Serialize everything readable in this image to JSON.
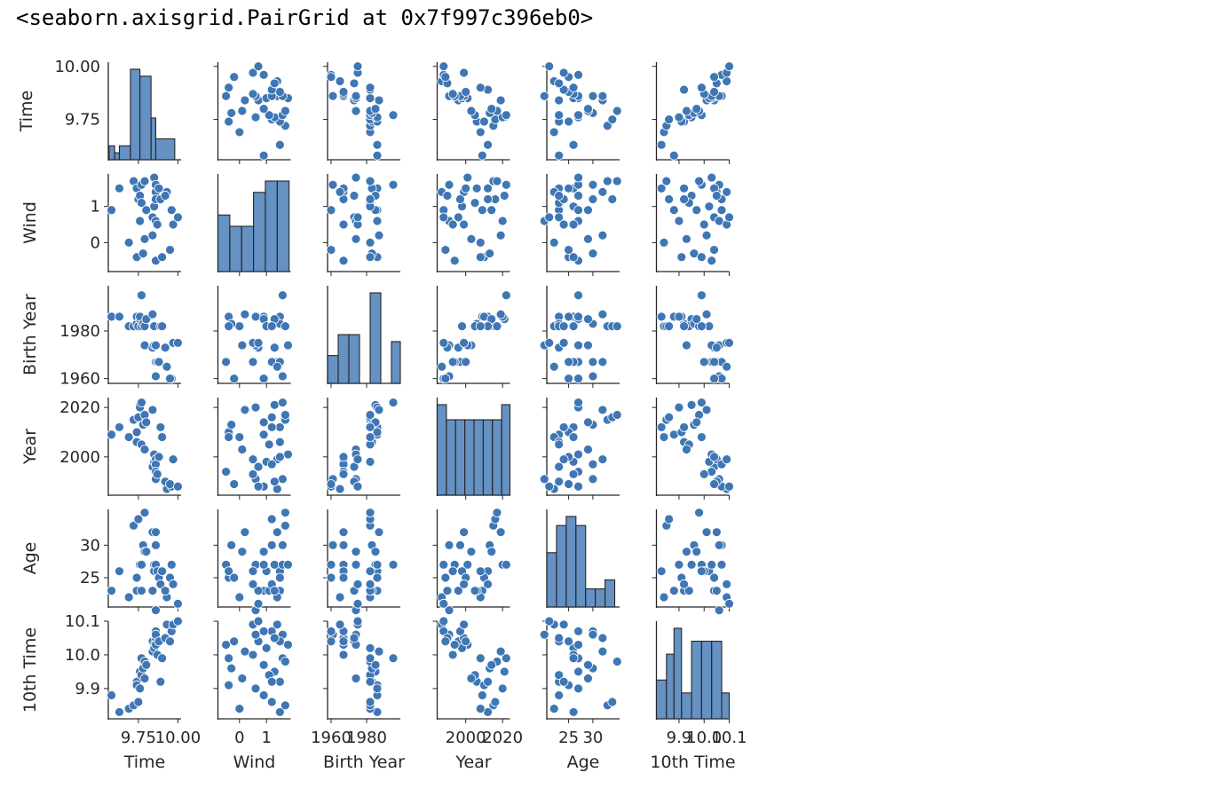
{
  "output_text": "<seaborn.axisgrid.PairGrid at 0x7f997c396eb0>",
  "colors": {
    "marker": "#3f76b4",
    "bar": "#3f76b4",
    "axis": "#262626"
  },
  "chart_data": {
    "type": "scatter",
    "title": "",
    "variables": [
      "Time",
      "Wind",
      "Birth Year",
      "Year",
      "Age",
      "10th Time"
    ],
    "diagonal": "histogram",
    "ticks": {
      "Time": {
        "values": [
          9.75,
          10.0
        ],
        "labels": [
          "9.75",
          "10.00"
        ]
      },
      "Wind": {
        "values": [
          0,
          1
        ],
        "labels": [
          "0",
          "1"
        ]
      },
      "Birth Year": {
        "values": [
          1960,
          1980
        ],
        "labels": [
          "1960",
          "1980"
        ]
      },
      "Year": {
        "values": [
          2000,
          2020
        ],
        "labels": [
          "2000",
          "2020"
        ]
      },
      "Age": {
        "values": [
          25,
          30
        ],
        "labels": [
          "25",
          "30"
        ]
      },
      "10th Time": {
        "values": [
          9.9,
          10.0,
          10.1
        ],
        "labels": [
          "9.9",
          "10.0",
          "10.1"
        ]
      }
    },
    "x_tick_labels_bottom": {
      "Time": [
        "9.75",
        "10.00"
      ],
      "Wind": [
        "0",
        "1"
      ],
      "Birth Year": [
        "1960",
        "1980"
      ],
      "Year": [
        "2000",
        "2020"
      ],
      "Age": [
        "25",
        "30"
      ],
      "10th Time": [
        "9.9",
        "10.0",
        "10.1"
      ]
    },
    "limits": {
      "Time": [
        9.56,
        10.02
      ],
      "Wind": [
        -0.8,
        1.9
      ],
      "Birth Year": [
        1958,
        1999
      ],
      "Year": [
        1984.5,
        2024
      ],
      "Age": [
        20.5,
        35.5
      ],
      "10th Time": [
        9.81,
        10.1
      ]
    },
    "records": [
      [
        9.58,
        0.9,
        1986,
        2009,
        23,
        9.88
      ],
      [
        9.63,
        1.5,
        1986,
        2012,
        26,
        9.83
      ],
      [
        9.69,
        0.0,
        1982,
        2008,
        22,
        9.84
      ],
      [
        9.72,
        1.7,
        1982,
        2015,
        33,
        9.85
      ],
      [
        9.74,
        1.5,
        1983,
        2006,
        23,
        9.92
      ],
      [
        9.74,
        -0.4,
        1986,
        2010,
        25,
        9.91
      ],
      [
        9.75,
        1.2,
        1982,
        2016,
        34,
        9.86
      ],
      [
        9.76,
        1.3,
        1985,
        2021,
        27,
        9.95
      ],
      [
        9.76,
        0.6,
        1986,
        2020,
        27,
        9.9
      ],
      [
        9.77,
        1.6,
        1995,
        2022,
        27,
        9.99
      ],
      [
        9.77,
        1.1,
        1982,
        2005,
        23,
        9.94
      ],
      [
        9.78,
        -0.3,
        1983,
        2013,
        30,
        9.96
      ],
      [
        9.79,
        0.1,
        1974,
        2003,
        29,
        9.93
      ],
      [
        9.79,
        1.7,
        1982,
        2017,
        35,
        9.98
      ],
      [
        9.8,
        0.9,
        1985,
        2014,
        29,
        9.97
      ],
      [
        9.84,
        0.7,
        1973,
        1996,
        23,
        10.04
      ],
      [
        9.84,
        0.2,
        1987,
        2019,
        32,
        10.01
      ],
      [
        9.85,
        1.8,
        1974,
        2001,
        27,
        10.03
      ],
      [
        9.85,
        1.0,
        1982,
        1998,
        26,
        10.02
      ],
      [
        9.86,
        1.4,
        1967,
        1999,
        32,
        10.05
      ],
      [
        9.86,
        0.6,
        1974,
        1991,
        20,
        10.06
      ],
      [
        9.86,
        1.2,
        1967,
        1997,
        30,
        10.07
      ],
      [
        9.86,
        1.6,
        1961,
        1991,
        30,
        10.06
      ],
      [
        9.86,
        -0.5,
        1967,
        1994,
        27,
        10.03
      ],
      [
        9.87,
        0.5,
        1967,
        1993,
        26,
        10.0
      ],
      [
        9.88,
        1.5,
        1967,
        2000,
        25,
        10.04
      ],
      [
        9.89,
        1.2,
        1982,
        2012,
        24,
        9.92
      ],
      [
        9.9,
        -0.4,
        1982,
        2008,
        26,
        9.99
      ],
      [
        9.93,
        1.4,
        1965,
        1987,
        22,
        10.09
      ],
      [
        9.96,
        0.9,
        1960,
        1988,
        27,
        10.07
      ],
      [
        9.92,
        1.3,
        1973,
        1990,
        23,
        10.05
      ],
      [
        9.95,
        -0.2,
        1960,
        1989,
        25,
        10.04
      ],
      [
        9.97,
        0.5,
        1975,
        1999,
        24,
        10.09
      ],
      [
        10.0,
        0.7,
        1975,
        1988,
        21,
        10.1
      ]
    ],
    "histograms": {
      "Time": {
        "edges": [
          9.565,
          9.6,
          9.63,
          9.7,
          9.76,
          9.83,
          9.86,
          9.98
        ],
        "counts": [
          2,
          1,
          2,
          13,
          12,
          6,
          3
        ]
      },
      "Wind": {
        "edges": [
          -0.8,
          -0.36,
          0.08,
          0.52,
          0.96,
          1.4,
          1.84
        ],
        "counts": [
          5,
          4,
          4,
          7,
          8,
          8
        ]
      },
      "Birth Year": {
        "edges": [
          1958,
          1964,
          1970,
          1976,
          1982,
          1988,
          1994,
          1999
        ],
        "counts": [
          4,
          7,
          7,
          0,
          13,
          0,
          6
        ]
      },
      "Year": {
        "edges": [
          1984.5,
          1989.5,
          1994.5,
          1999.5,
          2004.5,
          2009.5,
          2014.5,
          2019.5,
          2024
        ],
        "counts": [
          6,
          5,
          5,
          5,
          5,
          5,
          5,
          6
        ]
      },
      "Age": {
        "edges": [
          20.5,
          22.5,
          24.5,
          26.5,
          28.5,
          30.5,
          32.5,
          34.5
        ],
        "counts": [
          6,
          9,
          10,
          9,
          2,
          2,
          3
        ]
      },
      "10th Time": {
        "edges": [
          9.81,
          9.85,
          9.88,
          9.91,
          9.95,
          9.99,
          10.03,
          10.07,
          10.1
        ],
        "counts": [
          3,
          5,
          7,
          2,
          6,
          6,
          6,
          2
        ]
      }
    }
  }
}
